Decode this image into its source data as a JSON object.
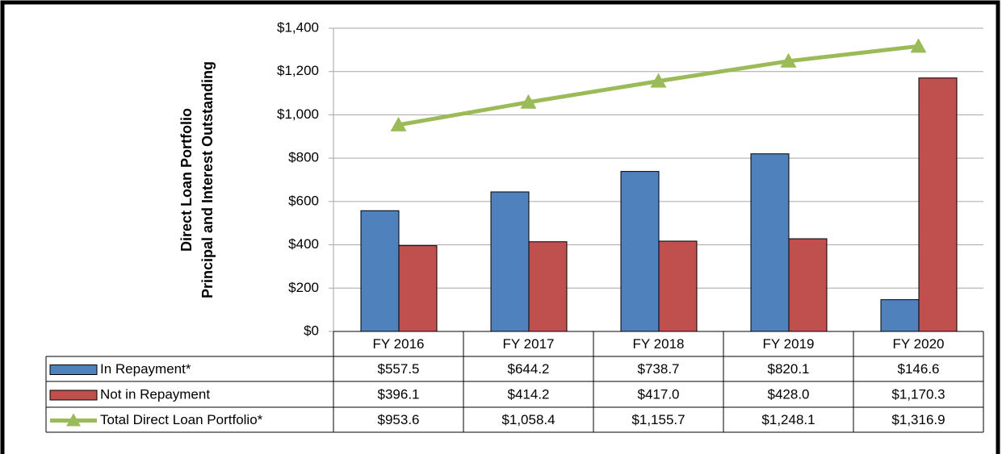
{
  "chart_data": {
    "type": "bar",
    "y_axis_label": [
      "Direct Loan Portfolio",
      "Principal and Interest Outstanding"
    ],
    "categories": [
      "FY 2016",
      "FY 2017",
      "FY 2018",
      "FY 2019",
      "FY 2020"
    ],
    "series": [
      {
        "name": "In Repayment*",
        "type": "bar",
        "color": "#4f81bd",
        "values": [
          557.5,
          644.2,
          738.7,
          820.1,
          146.6
        ],
        "value_labels": [
          "$557.5",
          "$644.2",
          "$738.7",
          "$820.1",
          "$146.6"
        ]
      },
      {
        "name": "Not in Repayment",
        "type": "bar",
        "color": "#c0504d",
        "values": [
          396.1,
          414.2,
          417.0,
          428.0,
          1170.3
        ],
        "value_labels": [
          "$396.1",
          "$414.2",
          "$417.0",
          "$428.0",
          "$1,170.3"
        ]
      },
      {
        "name": "Total Direct Loan Portfolio*",
        "type": "line",
        "color": "#9bbb59",
        "values": [
          953.6,
          1058.4,
          1155.7,
          1248.1,
          1316.9
        ],
        "value_labels": [
          "$953.6",
          "$1,058.4",
          "$1,155.7",
          "$1,248.1",
          "$1,316.9"
        ]
      }
    ],
    "ylim": [
      0,
      1400
    ],
    "yticks": [
      {
        "value": 0,
        "label": "$0"
      },
      {
        "value": 200,
        "label": "$200"
      },
      {
        "value": 400,
        "label": "$400"
      },
      {
        "value": 600,
        "label": "$600"
      },
      {
        "value": 800,
        "label": "$800"
      },
      {
        "value": 1000,
        "label": "$1,000"
      },
      {
        "value": 1200,
        "label": "$1,200"
      },
      {
        "value": 1400,
        "label": "$1,400"
      }
    ],
    "grid": true
  }
}
